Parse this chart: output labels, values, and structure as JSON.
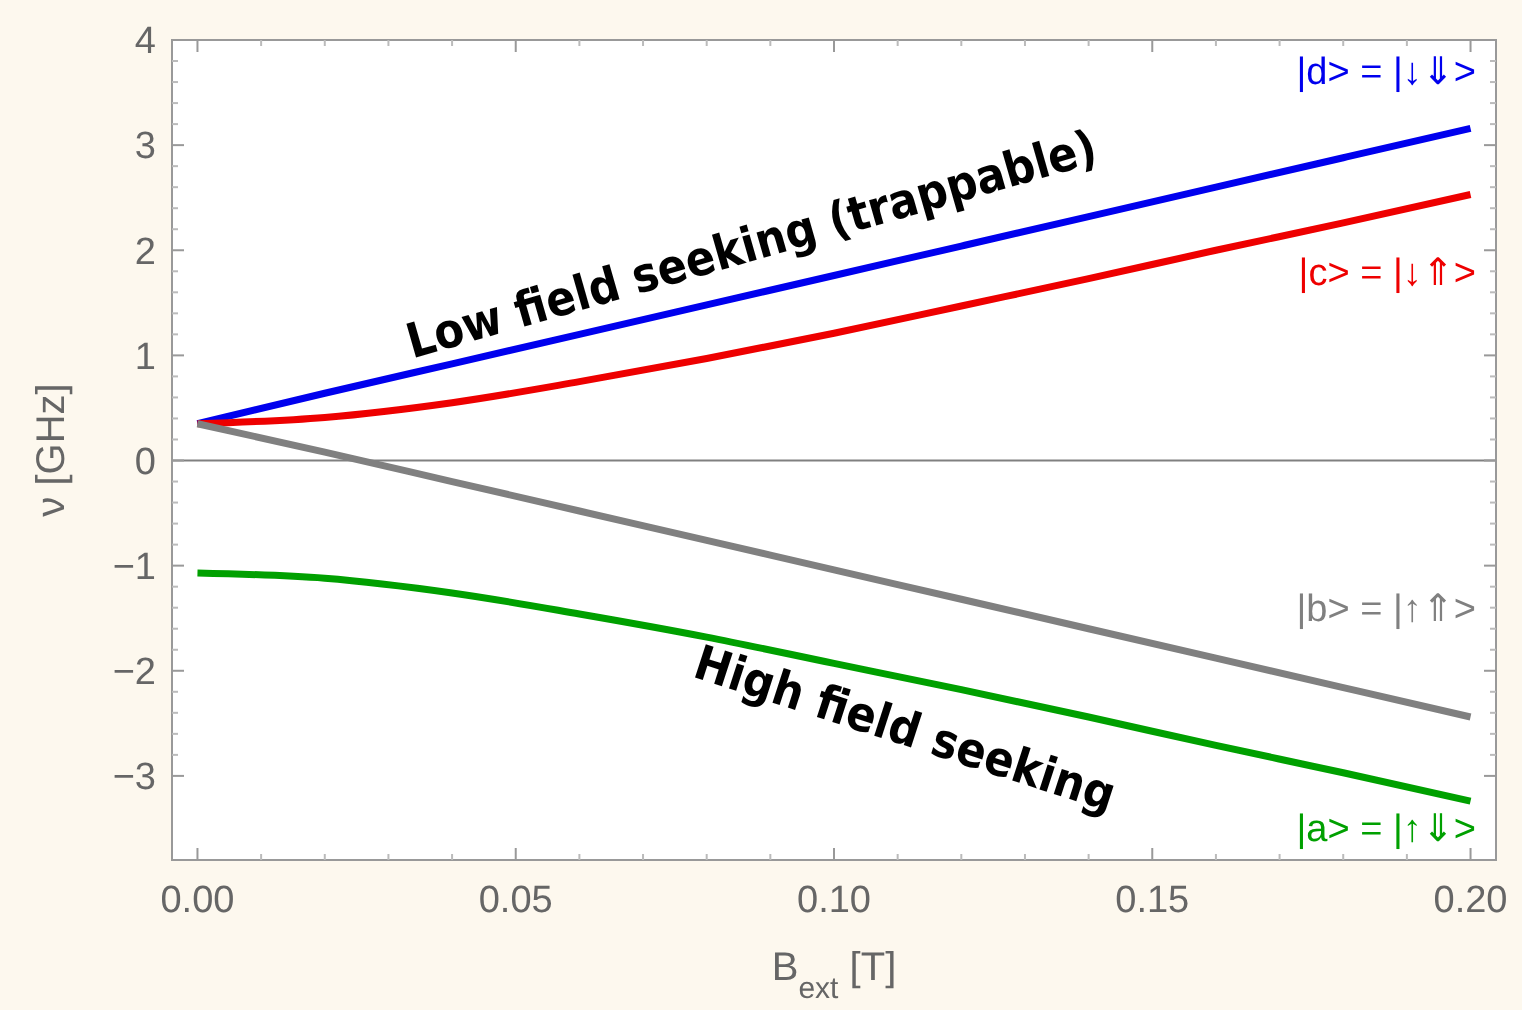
{
  "chart_data": {
    "type": "line",
    "xlabel": "B$_{ext}$ [T]",
    "ylabel": "ν [GHz]",
    "x": [
      0,
      0.02,
      0.04,
      0.06,
      0.08,
      0.1,
      0.12,
      0.14,
      0.16,
      0.18,
      0.2
    ],
    "xlim": [
      -0.004,
      0.204
    ],
    "xticks": [
      {
        "value": 0,
        "label": "0.00"
      },
      {
        "value": 0.05,
        "label": "0.05"
      },
      {
        "value": 0.1,
        "label": "0.10"
      },
      {
        "value": 0.15,
        "label": "0.15"
      },
      {
        "value": 0.2,
        "label": "0.20"
      }
    ],
    "ylim": [
      -3.8,
      4
    ],
    "yticks": [
      -3,
      -2,
      -1,
      0,
      1,
      2,
      3,
      4
    ],
    "grid": false,
    "marker": "none",
    "line_style": "solid",
    "ref_lines": [
      {
        "axis": "y",
        "value": 0,
        "color": "#808080"
      }
    ],
    "series": [
      {
        "name": "|d> = |↓⇓>",
        "color": "#0000ee",
        "values": [
          0.35,
          0.64,
          0.92,
          1.2,
          1.48,
          1.76,
          2.04,
          2.32,
          2.6,
          2.88,
          3.16
        ]
      },
      {
        "name": "|c> = |↓⇑>",
        "color": "#ee0000",
        "values": [
          0.35,
          0.41,
          0.55,
          0.75,
          0.97,
          1.21,
          1.47,
          1.73,
          2.0,
          2.26,
          2.53
        ]
      },
      {
        "name": "|b> = |↑⇑>",
        "color": "#808080",
        "values": [
          0.35,
          0.08,
          -0.2,
          -0.48,
          -0.76,
          -1.04,
          -1.32,
          -1.6,
          -1.88,
          -2.16,
          -2.44
        ]
      },
      {
        "name": "|a> = |↑⇓>",
        "color": "#00a000",
        "values": [
          -1.07,
          -1.12,
          -1.26,
          -1.46,
          -1.68,
          -1.93,
          -2.18,
          -2.44,
          -2.71,
          -2.97,
          -3.24
        ]
      }
    ],
    "annotations": [
      "Low field seeking (trappable)",
      "High field seeking"
    ]
  }
}
